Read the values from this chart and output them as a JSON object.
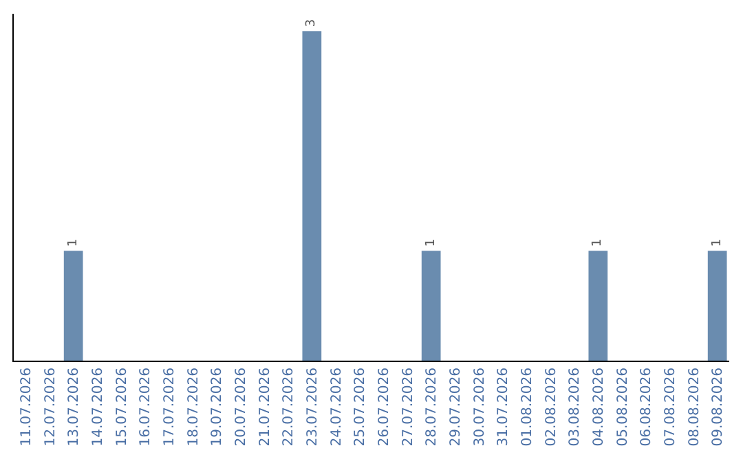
{
  "chart_data": {
    "type": "bar",
    "categories": [
      "11.07.2026",
      "12.07.2026",
      "13.07.2026",
      "14.07.2026",
      "15.07.2026",
      "16.07.2026",
      "17.07.2026",
      "18.07.2026",
      "19.07.2026",
      "20.07.2026",
      "21.07.2026",
      "22.07.2026",
      "23.07.2026",
      "24.07.2026",
      "25.07.2026",
      "26.07.2026",
      "27.07.2026",
      "28.07.2026",
      "29.07.2026",
      "30.07.2026",
      "31.07.2026",
      "01.08.2026",
      "02.08.2026",
      "03.08.2026",
      "04.08.2026",
      "05.08.2026",
      "06.08.2026",
      "07.08.2026",
      "08.08.2026",
      "09.08.2026"
    ],
    "values": [
      0,
      0,
      1,
      0,
      0,
      0,
      0,
      0,
      0,
      0,
      0,
      0,
      3,
      0,
      0,
      0,
      0,
      1,
      0,
      0,
      0,
      0,
      0,
      0,
      1,
      0,
      0,
      0,
      0,
      1
    ],
    "value_labels": [
      null,
      null,
      "1",
      null,
      null,
      null,
      null,
      null,
      null,
      null,
      null,
      null,
      "3",
      null,
      null,
      null,
      null,
      "1",
      null,
      null,
      null,
      null,
      null,
      null,
      "1",
      null,
      null,
      null,
      null,
      "1"
    ],
    "color": "#6a8caf",
    "grid": false,
    "legend": false,
    "tick_labels": "x"
  }
}
